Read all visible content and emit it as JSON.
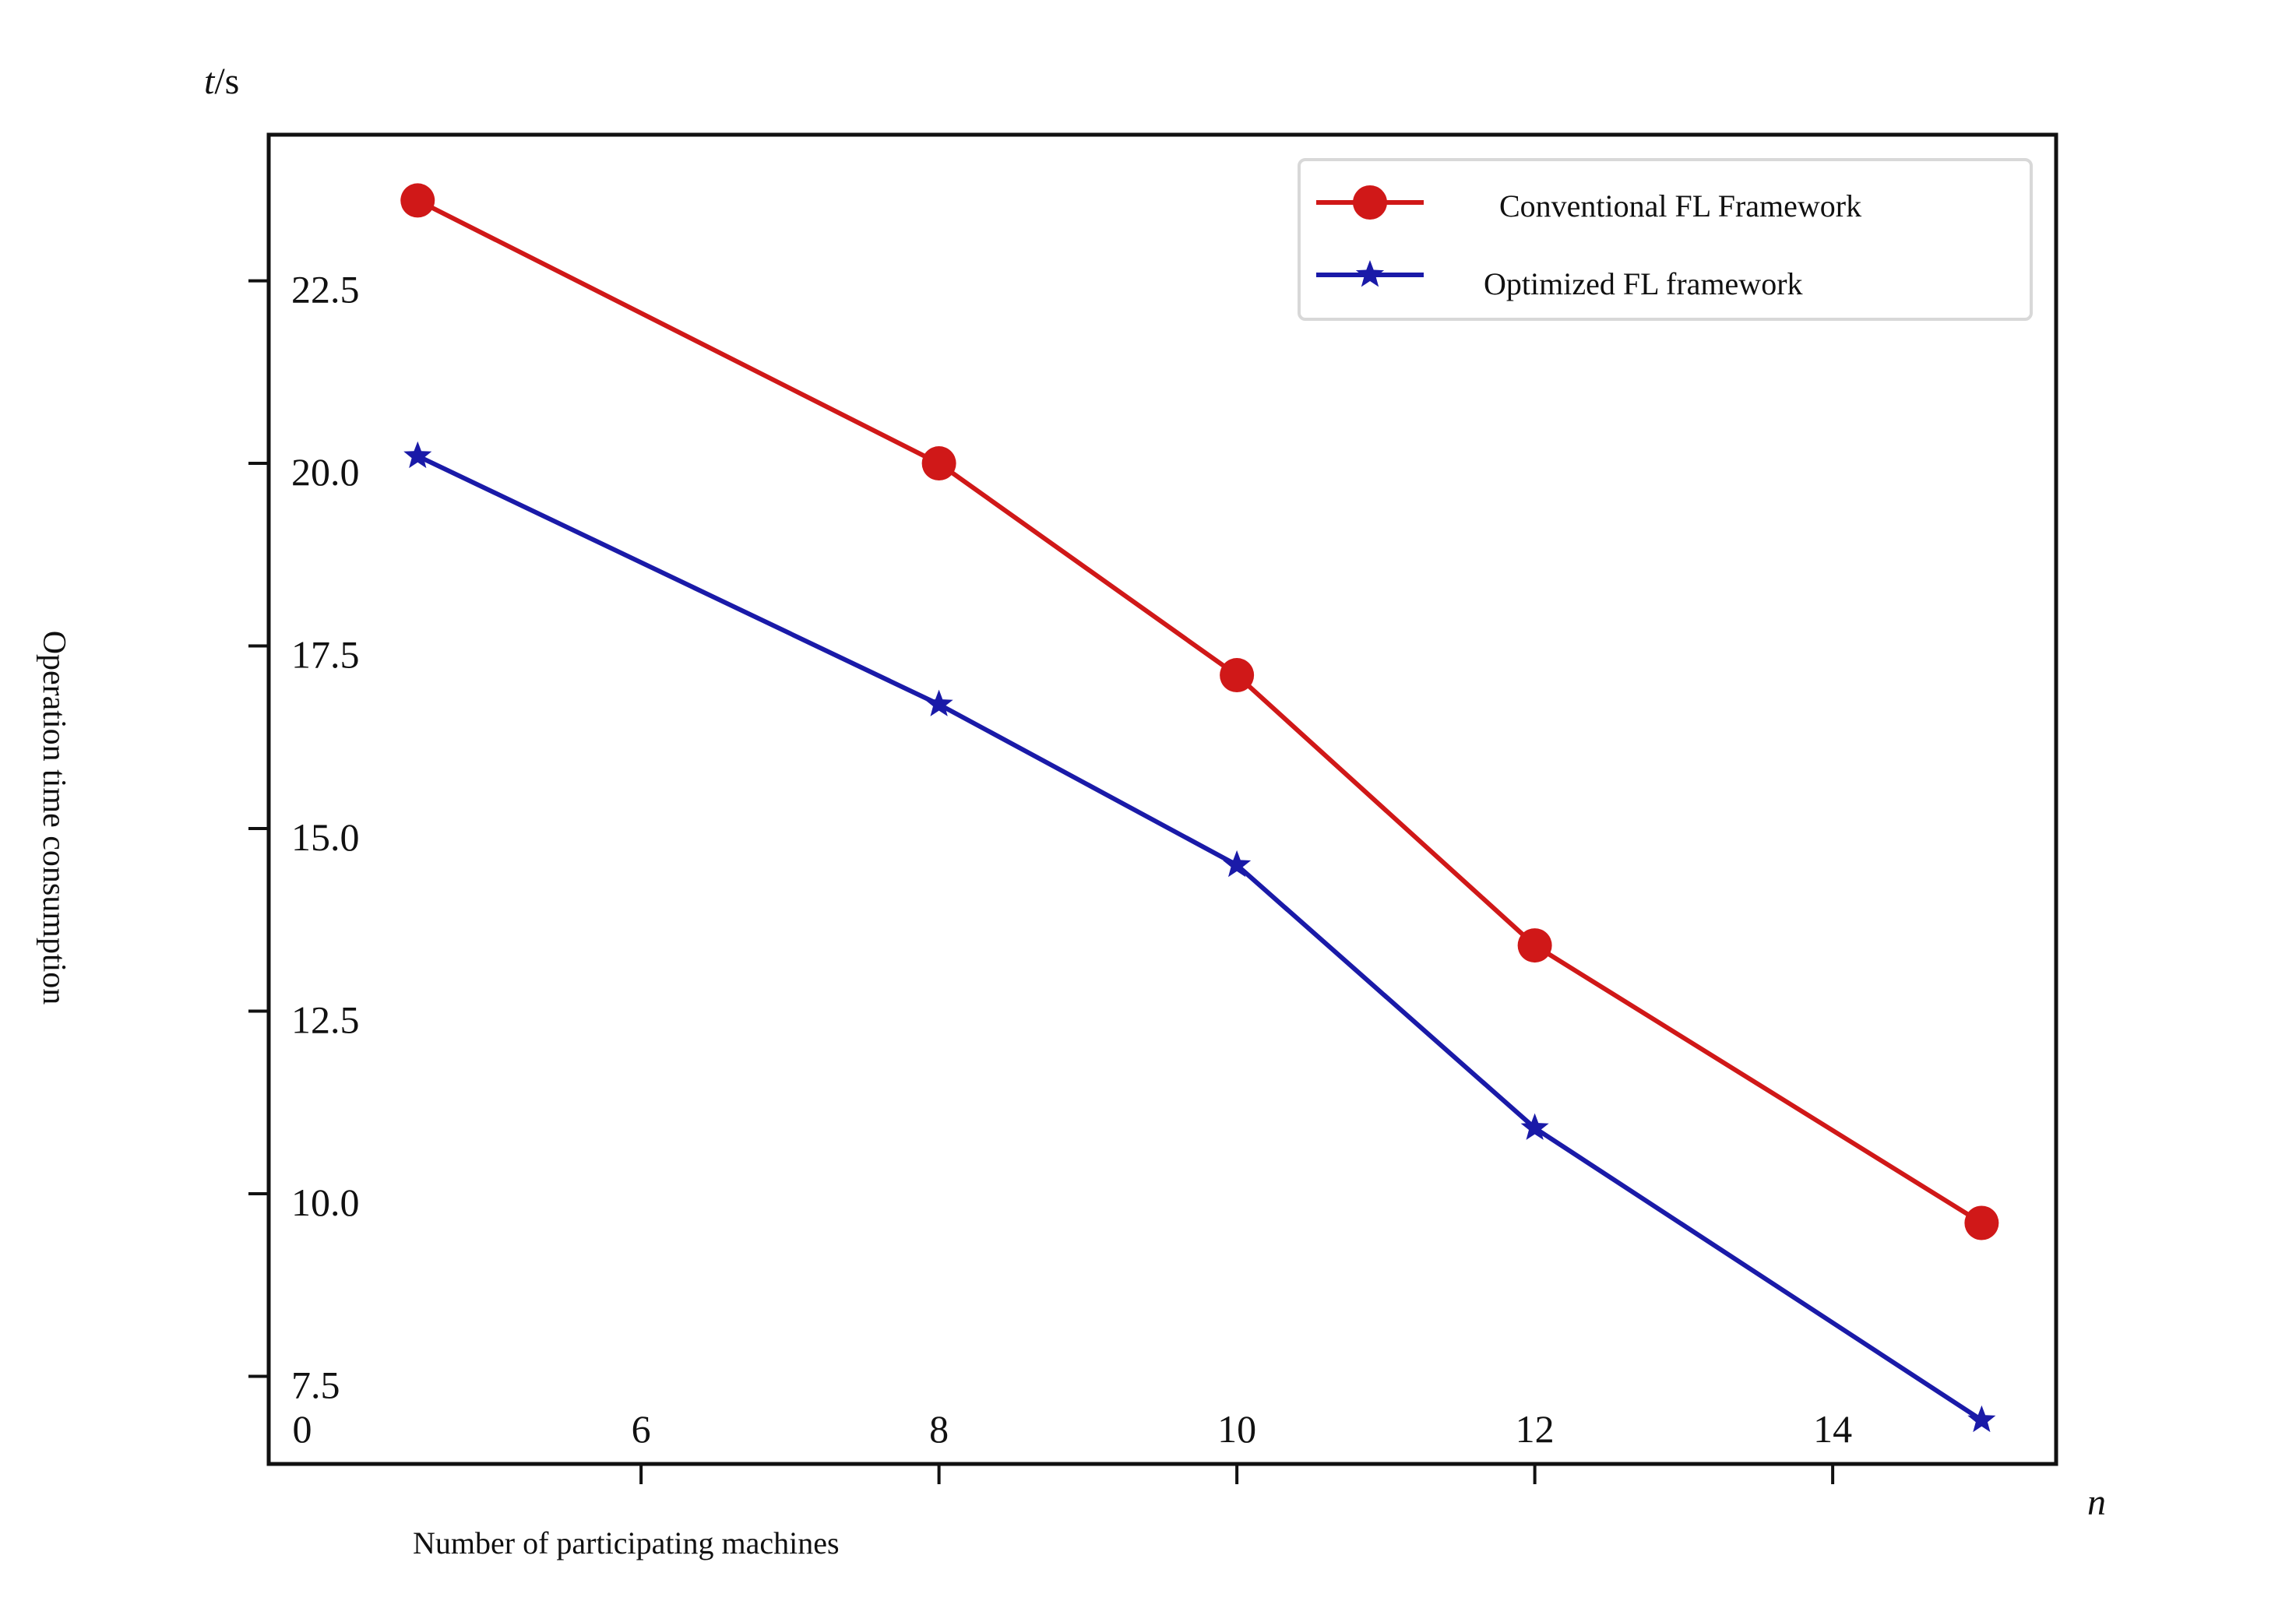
{
  "chart_data": {
    "type": "line",
    "x": [
      4.5,
      8,
      10,
      12,
      15
    ],
    "series": [
      {
        "name": "Conventional FL Framework",
        "color": "#d01818",
        "marker": "circle",
        "values": [
          23.6,
          20.0,
          17.1,
          13.4,
          9.6
        ]
      },
      {
        "name": "Optimized FL framework",
        "color": "#1a1aa8",
        "marker": "star",
        "values": [
          20.1,
          16.7,
          14.5,
          10.9,
          6.9
        ]
      }
    ],
    "xticks": [
      {
        "value": 6,
        "label": "6"
      },
      {
        "value": 8,
        "label": "8"
      },
      {
        "value": 10,
        "label": "10"
      },
      {
        "value": 12,
        "label": "12"
      },
      {
        "value": 14,
        "label": "14"
      }
    ],
    "origin_label": "0",
    "yticks": [
      {
        "value": 7.5,
        "label": "7.5"
      },
      {
        "value": 10.0,
        "label": "10.0"
      },
      {
        "value": 12.5,
        "label": "12.5"
      },
      {
        "value": 15.0,
        "label": "15.0"
      },
      {
        "value": 17.5,
        "label": "17.5"
      },
      {
        "value": 20.0,
        "label": "20.0"
      },
      {
        "value": 22.5,
        "label": "22.5"
      }
    ],
    "xlim": [
      3.5,
      15.5
    ],
    "ylim": [
      6.3,
      24.5
    ],
    "xlabel": "Number of participating machines",
    "ylabel": "Operation time consumption",
    "x_unit": "n",
    "y_unit_italic": "t",
    "y_unit_rest": "/s",
    "legend_position": "top-right",
    "grid": false
  }
}
